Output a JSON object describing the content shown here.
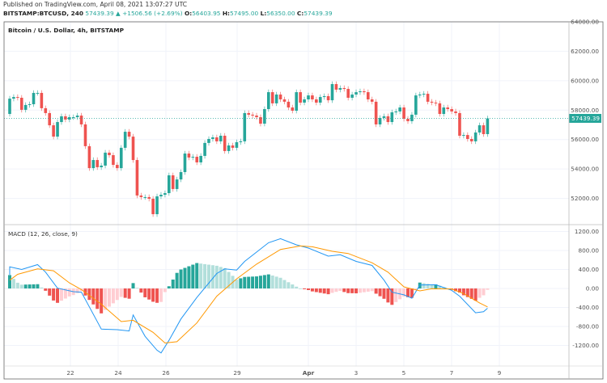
{
  "header": {
    "published": "Published on TradingView.com, April 08, 2021 13:07:27 UTC",
    "symbol": "BITSTAMP:BTCUSD, 240",
    "last": "57439.39",
    "change": "+1506.56 (+2.69%)",
    "o_label": "O:",
    "o": "56403.95",
    "h_label": "H:",
    "h": "57495.00",
    "l_label": "L:",
    "l": "56350.00",
    "c_label": "C:",
    "c": "57439.39",
    "arrow": "▲"
  },
  "chart_title": "Bitcoin / U.S. Dollar, 4h, BITSTAMP",
  "indicator_title": "MACD (12, 26, close, 9)",
  "colors": {
    "up": "#26a69a",
    "down": "#ef5350",
    "macd": "#2196f3",
    "signal": "#ff9800",
    "hist_up_strong": "#26a69a",
    "hist_up_weak": "#b2dfdb",
    "hist_down_strong": "#ef5350",
    "hist_down_weak": "#ffcdd2",
    "grid": "#f0f3fa"
  },
  "chart_data": [
    {
      "type": "candlestick",
      "interval": "4h",
      "first_open": 57740,
      "close": [
        58780,
        58890,
        58840,
        58020,
        58350,
        58400,
        59170,
        59170,
        58130,
        57800,
        56970,
        56200,
        57190,
        57580,
        57360,
        57520,
        57520,
        57630,
        57030,
        55550,
        54060,
        54610,
        54120,
        54230,
        55110,
        54940,
        54280,
        54060,
        55440,
        56530,
        56200,
        54610,
        52200,
        52090,
        52090,
        51980,
        50930,
        52140,
        52250,
        52360,
        53570,
        52640,
        53290,
        53790,
        55050,
        54780,
        54830,
        54450,
        54890,
        55770,
        56040,
        56150,
        55880,
        56260,
        55220,
        55600,
        55440,
        55820,
        55880,
        57800,
        57690,
        57630,
        57520,
        57080,
        58070,
        59220,
        58460,
        59060,
        58730,
        58570,
        58180,
        57960,
        59220,
        58510,
        58730,
        59000,
        58730,
        58510,
        58890,
        58950,
        58670,
        59770,
        59390,
        59500,
        59440,
        58840,
        59060,
        59220,
        59280,
        59220,
        58730,
        58570,
        57030,
        57470,
        57580,
        57190,
        57850,
        57910,
        58180,
        57410,
        57250,
        57690,
        59000,
        59060,
        59110,
        58570,
        58510,
        58460,
        57740,
        58180,
        58070,
        57910,
        57800,
        56260,
        56310,
        56040,
        55880,
        56480,
        56970,
        56370,
        57439.39
      ],
      "price_ticks": [
        "52000.00",
        "54000.00",
        "56000.00",
        "58000.00",
        "60000.00",
        "62000.00",
        "64000.00"
      ],
      "ylim": [
        50500,
        64000
      ],
      "last_price_label": "57439.39"
    },
    {
      "type": "line",
      "title": "MACD (12, 26, close, 9)",
      "series": [
        {
          "key": "macd",
          "points": [
            [
              0,
              287
            ],
            [
              0,
              456
            ],
            [
              3,
              400
            ],
            [
              7,
              501
            ],
            [
              9,
              343
            ],
            [
              12,
              6
            ],
            [
              16,
              -68
            ],
            [
              18,
              -79
            ],
            [
              20,
              -388
            ],
            [
              23,
              -856
            ],
            [
              27,
              -867
            ],
            [
              30,
              -895
            ],
            [
              31,
              -557
            ],
            [
              34,
              -1008
            ],
            [
              37,
              -1300
            ],
            [
              38,
              -1357
            ],
            [
              40,
              -1092
            ],
            [
              43,
              -642
            ],
            [
              47,
              -191
            ],
            [
              52,
              315
            ],
            [
              54,
              411
            ],
            [
              57,
              388
            ],
            [
              59,
              569
            ],
            [
              62,
              766
            ],
            [
              65,
              963
            ],
            [
              68,
              1047
            ],
            [
              72,
              918
            ],
            [
              75,
              850
            ],
            [
              80,
              681
            ],
            [
              83,
              709
            ],
            [
              87,
              569
            ],
            [
              91,
              484
            ],
            [
              94,
              175
            ],
            [
              96,
              -79
            ],
            [
              99,
              -135
            ],
            [
              101,
              -205
            ],
            [
              103,
              73
            ],
            [
              107,
              79
            ],
            [
              111,
              -39
            ],
            [
              113,
              -163
            ],
            [
              117,
              -512
            ],
            [
              119,
              -490
            ],
            [
              120,
              -417
            ]
          ]
        },
        {
          "key": "signal",
          "points": [
            [
              0,
              174
            ],
            [
              2,
              298
            ],
            [
              7,
              411
            ],
            [
              11,
              372
            ],
            [
              15,
              118
            ],
            [
              18,
              -23
            ],
            [
              23,
              -332
            ],
            [
              28,
              -698
            ],
            [
              31,
              -670
            ],
            [
              36,
              -923
            ],
            [
              39,
              -1148
            ],
            [
              42,
              -1120
            ],
            [
              47,
              -726
            ],
            [
              52,
              -163
            ],
            [
              57,
              203
            ],
            [
              62,
              512
            ],
            [
              68,
              822
            ],
            [
              73,
              895
            ],
            [
              76,
              878
            ],
            [
              81,
              783
            ],
            [
              85,
              737
            ],
            [
              91,
              540
            ],
            [
              95,
              343
            ],
            [
              99,
              34
            ],
            [
              103,
              -51
            ],
            [
              106,
              -6
            ],
            [
              111,
              -11
            ],
            [
              114,
              -107
            ],
            [
              118,
              -304
            ],
            [
              120,
              -388
            ]
          ]
        }
      ],
      "y_ticks": [
        "-1200.00",
        "-800.00",
        "-400.00",
        "0.00",
        "400.00",
        "800.00",
        "1200.00"
      ],
      "ylim": [
        -1500,
        1300
      ]
    }
  ],
  "time_axis": [
    "22",
    "24",
    "26",
    "29",
    "Apr",
    "3",
    "5",
    "7",
    "9"
  ]
}
